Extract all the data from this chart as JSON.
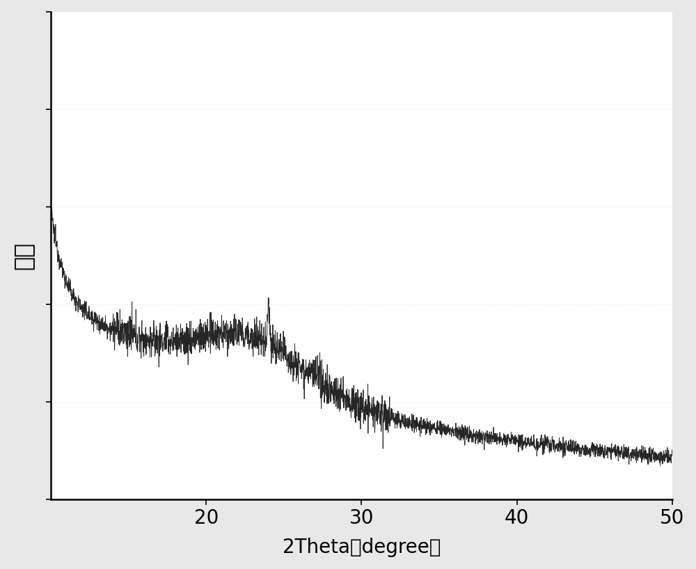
{
  "x_min": 10,
  "x_max": 50,
  "x_ticks": [
    20,
    30,
    40,
    50
  ],
  "xlabel": "2Theta（degree）",
  "ylabel": "强度",
  "line_color": "#1a1a1a",
  "background_color": "#e8e8e8",
  "plot_bg_color": "#ffffff",
  "grid_color": "#d0d0d0",
  "ylabel_fontsize": 24,
  "xlabel_fontsize": 20,
  "tick_fontsize": 20,
  "grid_alpha": 0.5
}
